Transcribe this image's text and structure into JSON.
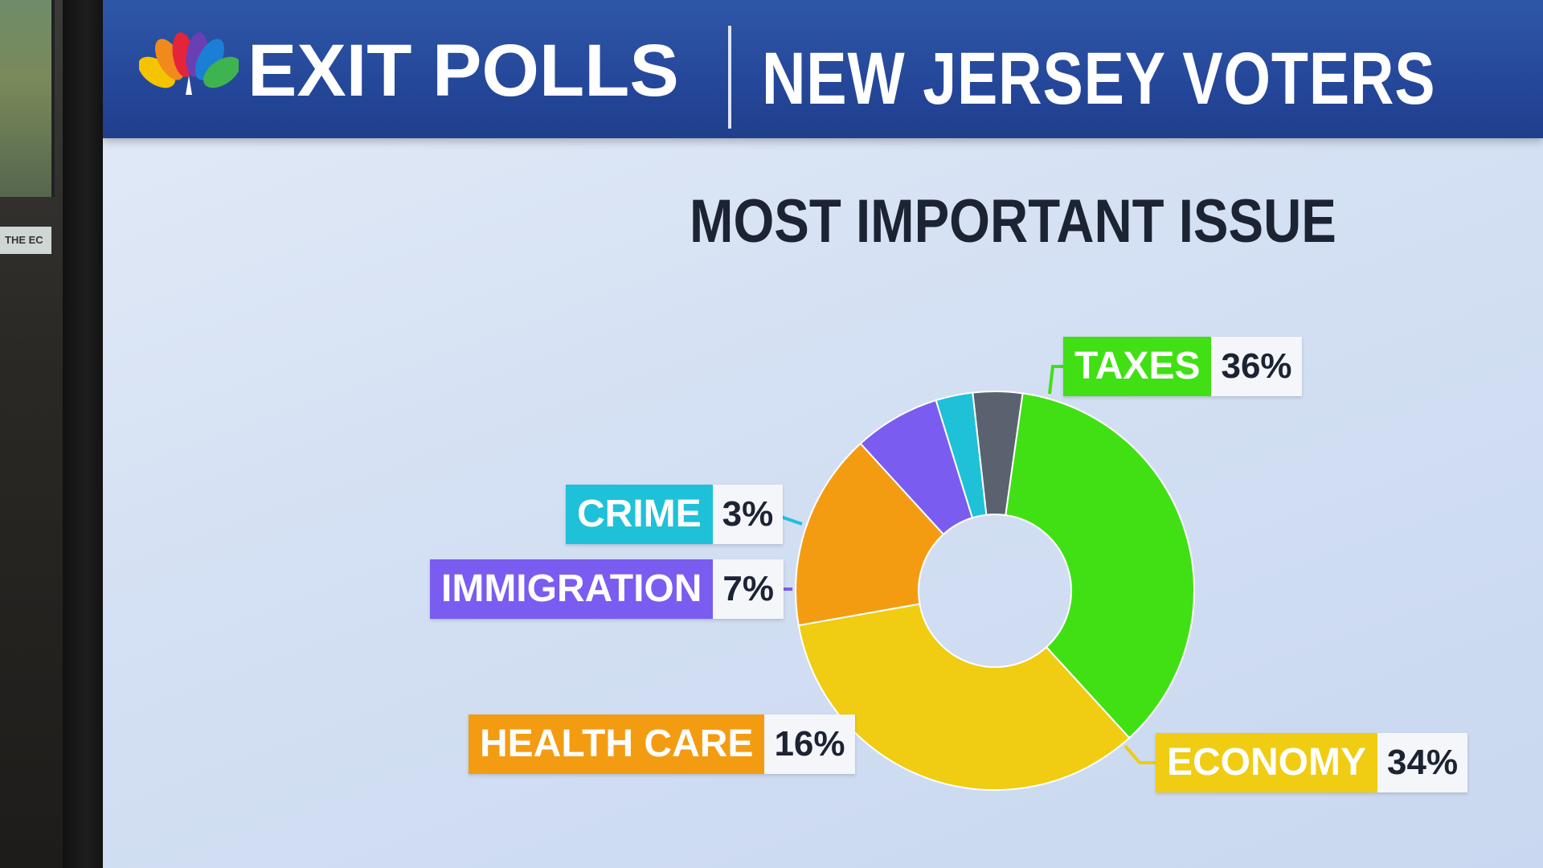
{
  "header": {
    "brand": "EXIT POLLS",
    "title": "NEW JERSEY VOTERS"
  },
  "side_monitor": {
    "ticker": "THE EC"
  },
  "chart_data": {
    "type": "pie",
    "variant": "donut",
    "title": "MOST IMPORTANT ISSUE",
    "slices": [
      {
        "label": "TAXES",
        "value": 36,
        "display": "36%",
        "color": "#40e014"
      },
      {
        "label": "ECONOMY",
        "value": 34,
        "display": "34%",
        "color": "#f0cc12"
      },
      {
        "label": "HEALTH CARE",
        "value": 16,
        "display": "16%",
        "color": "#f39c12"
      },
      {
        "label": "IMMIGRATION",
        "value": 7,
        "display": "7%",
        "color": "#7b5cf0"
      },
      {
        "label": "CRIME",
        "value": 3,
        "display": "3%",
        "color": "#1ec1d8"
      },
      {
        "label": "",
        "value": 4,
        "display": "",
        "color": "#5a6270"
      }
    ]
  },
  "colors": {
    "header_blue": "#25479a",
    "screen_bg": "#d4e0f3",
    "title_text": "#1c2333"
  }
}
